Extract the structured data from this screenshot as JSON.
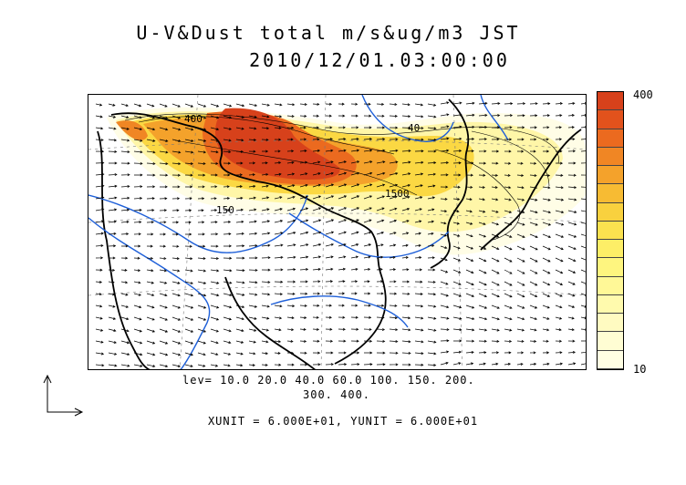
{
  "title_line1": "U-V&Dust total m/s&ug/m3 JST",
  "title_line2": "2010/12/01.03:00:00",
  "levels_line1": "lev= 10.0 20.0 40.0 60.0 100. 150. 200.",
  "levels_line2": "300. 400.",
  "units_text": "XUNIT = 6.000E+01, YUNIT = 6.000E+01",
  "colorbar": {
    "max_label": "400",
    "min_label": "10",
    "colors": [
      "#d7411b",
      "#e2521c",
      "#eb6a1f",
      "#f08624",
      "#f4a22b",
      "#f7bb33",
      "#f9d13e",
      "#fbe24f",
      "#fdee67",
      "#fef57f",
      "#fff897",
      "#fffaad",
      "#fffbc1",
      "#fffdd3",
      "#fffee3"
    ]
  },
  "contour_labels": [
    "400",
    "40",
    "1500",
    "150"
  ],
  "colors": {
    "coast": "#000000",
    "river": "#1e5fd8",
    "grid": "#555555"
  }
}
